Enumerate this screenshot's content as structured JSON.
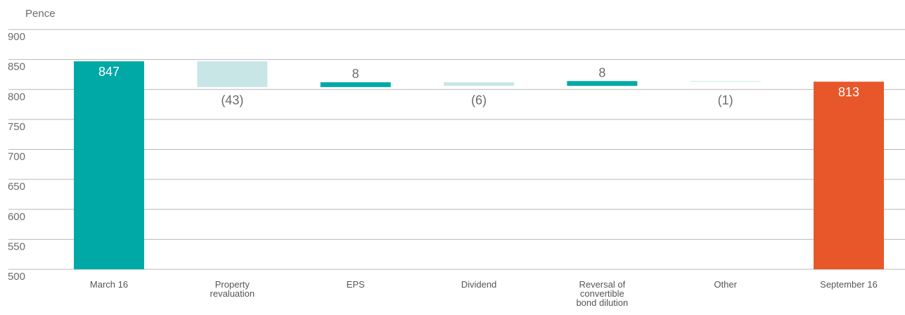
{
  "chart_data": {
    "type": "bar",
    "subtype": "waterfall",
    "unit_label": "Pence",
    "ylim": [
      500,
      900
    ],
    "yticks": [
      900,
      850,
      800,
      750,
      700,
      650,
      600,
      550,
      500
    ],
    "grid": true,
    "categories": [
      "March 16",
      "Property revaluation",
      "EPS",
      "Dividend",
      "Reversal of convertible bond dilution",
      "Other",
      "September 16"
    ],
    "values": [
      847,
      -43,
      8,
      -6,
      8,
      -1,
      813
    ],
    "data_labels": [
      "847",
      "(43)",
      "8",
      "(6)",
      "8",
      "(1)",
      "813"
    ],
    "bar_kind": [
      "total",
      "decrease",
      "increase",
      "decrease",
      "increase",
      "decrease",
      "total"
    ],
    "colors": {
      "start_total": "#00a9a6",
      "end_total": "#e8572a",
      "increase": "#00a9a6",
      "decrease": "#c9e6e7",
      "grid": "#b8b8b8",
      "label_on_bar": "#ffffff",
      "label_off_bar": "#6b6b6b"
    }
  }
}
